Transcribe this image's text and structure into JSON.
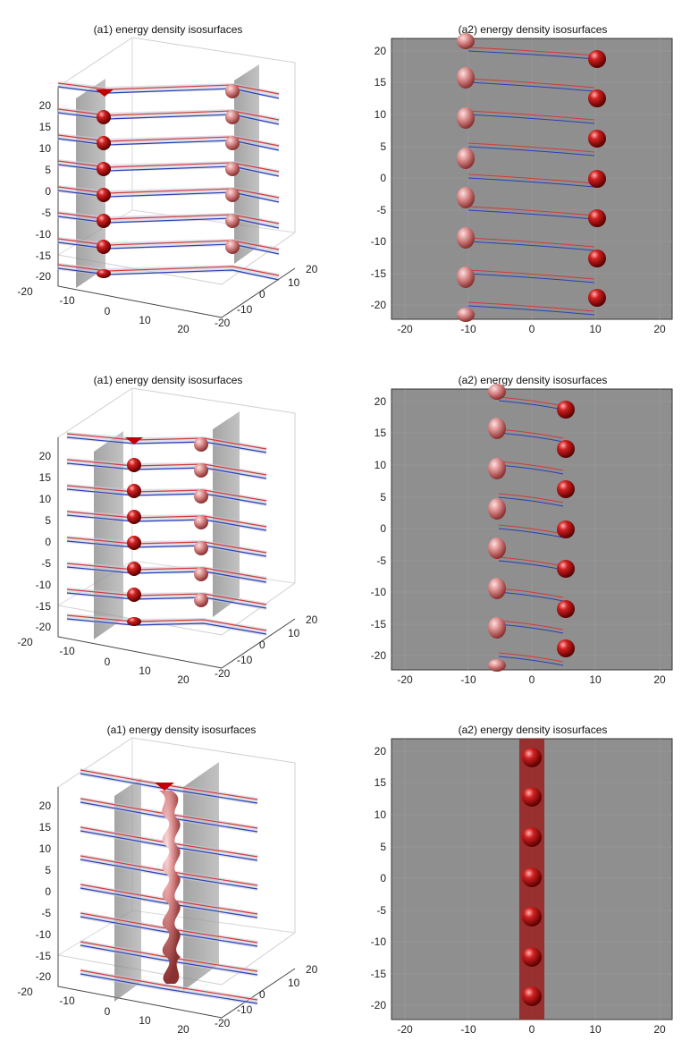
{
  "figure": {
    "rows": [
      {
        "left": {
          "title": "(a1) energy density isosurfaces",
          "z_ticks": [
            "20",
            "15",
            "10",
            "5",
            "0",
            "-5",
            "-10",
            "-15",
            "-20"
          ],
          "x_ticks": [
            "-20",
            "-10",
            "0",
            "10",
            "20"
          ],
          "y_ticks": [
            "20",
            "10",
            "0",
            "-10",
            "-20"
          ]
        },
        "right": {
          "title": "(a2) energy density isosurfaces",
          "y_ticks": [
            "20",
            "15",
            "10",
            "5",
            "0",
            "-5",
            "-10",
            "-15",
            "-20"
          ],
          "x_ticks": [
            "-20",
            "-10",
            "0",
            "10",
            "20"
          ]
        }
      },
      {
        "left": {
          "title": "(a1) energy density isosurfaces",
          "z_ticks": [
            "20",
            "15",
            "10",
            "5",
            "0",
            "-5",
            "-10",
            "-15",
            "-20"
          ],
          "x_ticks": [
            "-20",
            "-10",
            "0",
            "10",
            "20"
          ],
          "y_ticks": [
            "20",
            "10",
            "0",
            "-10",
            "-20"
          ]
        },
        "right": {
          "title": "(a2) energy density isosurfaces",
          "y_ticks": [
            "20",
            "15",
            "10",
            "5",
            "0",
            "-5",
            "-10",
            "-15",
            "-20"
          ],
          "x_ticks": [
            "-20",
            "-10",
            "0",
            "10",
            "20"
          ]
        }
      },
      {
        "left": {
          "title": "(a1) energy density isosurfaces",
          "z_ticks": [
            "20",
            "15",
            "10",
            "5",
            "0",
            "-5",
            "-10",
            "-15",
            "-20"
          ],
          "x_ticks": [
            "-20",
            "-10",
            "0",
            "10",
            "20"
          ],
          "y_ticks": [
            "20",
            "10",
            "0",
            "-10",
            "-20"
          ]
        },
        "right": {
          "title": "(a2) energy density isosurfaces",
          "y_ticks": [
            "20",
            "15",
            "10",
            "5",
            "0",
            "-5",
            "-10",
            "-15",
            "-20"
          ],
          "x_ticks": [
            "-20",
            "-10",
            "0",
            "10",
            "20"
          ]
        }
      }
    ]
  },
  "chart_data": [
    {
      "type": "heatmap",
      "panel": "row1-right",
      "title": "(a2) energy density isosurfaces",
      "xlim": [
        -22,
        22
      ],
      "ylim": [
        -22,
        22
      ],
      "string_x": [
        -10,
        10
      ]
    },
    {
      "type": "heatmap",
      "panel": "row2-right",
      "title": "(a2) energy density isosurfaces",
      "xlim": [
        -22,
        22
      ],
      "ylim": [
        -22,
        22
      ],
      "string_x": [
        -5,
        5
      ]
    },
    {
      "type": "heatmap",
      "panel": "row3-right",
      "title": "(a2) energy density isosurfaces",
      "xlim": [
        -22,
        22
      ],
      "ylim": [
        -22,
        22
      ],
      "string_x": [
        0,
        0
      ]
    }
  ],
  "colors": {
    "bead": "#b3161b",
    "plane": "#8a8a8a",
    "line_red": "#d23a3a",
    "line_blue": "#2a3fb8",
    "tube": "#bfc4d6"
  }
}
